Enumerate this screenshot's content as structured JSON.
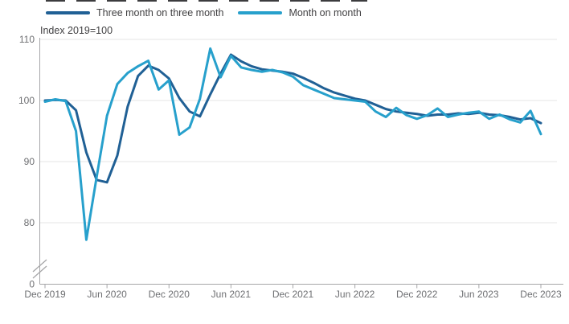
{
  "subtitle": "Index 2019=100",
  "legend": {
    "items": [
      {
        "label": "Three month on three month",
        "color": "#206095"
      },
      {
        "label": "Month on month",
        "color": "#27A0CC"
      }
    ]
  },
  "colors": {
    "series_dark": "#206095",
    "series_light": "#27A0CC",
    "gridline": "#e4e4e4",
    "axis": "#a6a6a8",
    "tick_text": "#6e6f72",
    "label_text": "#414042"
  },
  "chart_data": {
    "type": "line",
    "title": "",
    "subtitle": "Index 2019=100",
    "xlabel": "",
    "ylabel": "Index 2019=100",
    "grid": "horizontal",
    "legend_position": "top",
    "axis_break_at_zero": true,
    "y_ticks": [
      0,
      80,
      90,
      100,
      110
    ],
    "y_gridlines": [
      110,
      100,
      90,
      80
    ],
    "ylim": [
      76,
      110
    ],
    "x_tick_labels": [
      "Dec 2019",
      "Jun 2020",
      "Dec 2020",
      "Jun 2021",
      "Dec 2021",
      "Jun 2022",
      "Dec 2022",
      "Jun 2023",
      "Dec 2023"
    ],
    "x_tick_every_n_months": 6,
    "categories": [
      "Dec 2019",
      "Jan 2020",
      "Feb 2020",
      "Mar 2020",
      "Apr 2020",
      "May 2020",
      "Jun 2020",
      "Jul 2020",
      "Aug 2020",
      "Sep 2020",
      "Oct 2020",
      "Nov 2020",
      "Dec 2020",
      "Jan 2021",
      "Feb 2021",
      "Mar 2021",
      "Apr 2021",
      "May 2021",
      "Jun 2021",
      "Jul 2021",
      "Aug 2021",
      "Sep 2021",
      "Oct 2021",
      "Nov 2021",
      "Dec 2021",
      "Jan 2022",
      "Feb 2022",
      "Mar 2022",
      "Apr 2022",
      "May 2022",
      "Jun 2022",
      "Jul 2022",
      "Aug 2022",
      "Sep 2022",
      "Oct 2022",
      "Nov 2022",
      "Dec 2022",
      "Jan 2023",
      "Feb 2023",
      "Mar 2023",
      "Apr 2023",
      "May 2023",
      "Jun 2023",
      "Jul 2023",
      "Aug 2023",
      "Sep 2023",
      "Oct 2023",
      "Nov 2023",
      "Dec 2023"
    ],
    "series": [
      {
        "name": "Three month on three month",
        "color": "#206095",
        "values": [
          100.0,
          100.1,
          100.0,
          98.4,
          91.5,
          87.0,
          86.6,
          91.0,
          99.0,
          104.0,
          105.7,
          105.0,
          103.6,
          100.4,
          98.2,
          97.4,
          101.0,
          104.4,
          107.5,
          106.4,
          105.6,
          105.1,
          104.9,
          104.7,
          104.4,
          103.7,
          102.9,
          102.0,
          101.3,
          100.8,
          100.3,
          100.0,
          99.3,
          98.6,
          98.2,
          98.0,
          97.8,
          97.5,
          97.7,
          97.7,
          97.9,
          97.8,
          98.0,
          97.7,
          97.6,
          97.3,
          96.9,
          97.1,
          96.3
        ]
      },
      {
        "name": "Month on month",
        "color": "#27A0CC",
        "values": [
          99.8,
          100.2,
          99.9,
          95.0,
          77.2,
          87.5,
          97.5,
          102.7,
          104.5,
          105.6,
          106.5,
          101.8,
          103.3,
          94.4,
          95.6,
          100.3,
          108.5,
          103.8,
          107.3,
          105.4,
          105.0,
          104.7,
          105.0,
          104.6,
          103.9,
          102.5,
          101.8,
          101.1,
          100.4,
          100.2,
          100.0,
          99.8,
          98.2,
          97.3,
          98.8,
          97.6,
          97.0,
          97.6,
          98.7,
          97.3,
          97.7,
          98.0,
          98.2,
          97.0,
          97.7,
          96.9,
          96.4,
          98.3,
          94.5
        ]
      }
    ]
  }
}
